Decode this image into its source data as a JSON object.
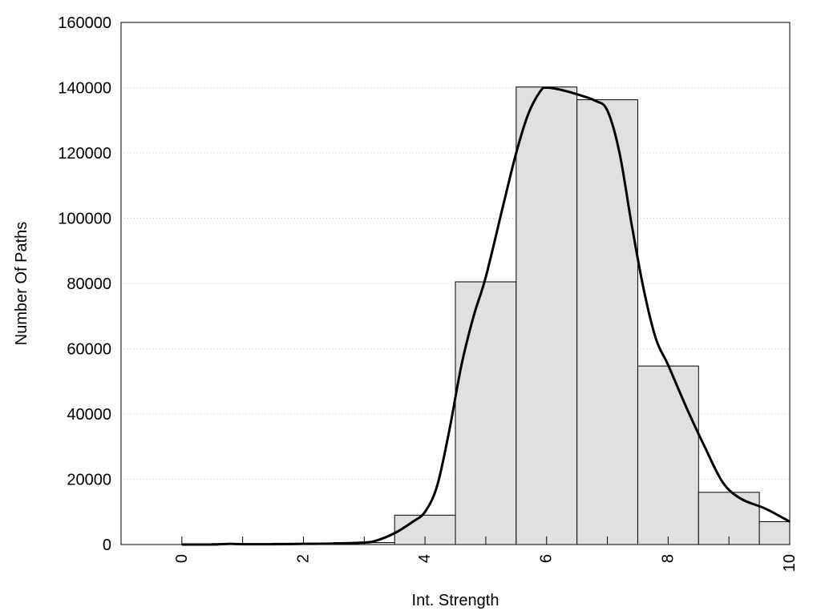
{
  "chart_data": {
    "type": "bar",
    "xlabel": "Int. Strength",
    "ylabel": "Number Of Paths",
    "xlim": [
      -1,
      10
    ],
    "ylim": [
      0,
      160000
    ],
    "x_ticks": [
      0,
      2,
      4,
      6,
      8,
      10
    ],
    "y_ticks": [
      0,
      20000,
      40000,
      60000,
      80000,
      100000,
      120000,
      140000,
      160000
    ],
    "grid": "horizontal dotted",
    "bar_width": 1,
    "series": [
      {
        "type": "bar",
        "x": [
          0,
          1,
          2,
          3,
          4,
          5,
          6,
          7,
          8,
          9,
          10
        ],
        "values": [
          0,
          300,
          400,
          600,
          9000,
          80500,
          140200,
          136300,
          54700,
          16000,
          7000
        ]
      },
      {
        "type": "line",
        "x": [
          0,
          0.5,
          0.8,
          1,
          1.5,
          2,
          2.5,
          3,
          3.2,
          3.5,
          3.8,
          4,
          4.2,
          4.4,
          4.6,
          4.8,
          5,
          5.3,
          5.5,
          5.7,
          5.9,
          6,
          6.2,
          6.5,
          6.8,
          7,
          7.2,
          7.4,
          7.6,
          7.8,
          8,
          8.3,
          8.6,
          8.9,
          9.2,
          9.6,
          10
        ],
        "values": [
          0,
          0,
          200,
          100,
          100,
          200,
          300,
          600,
          1200,
          3500,
          7000,
          10000,
          18000,
          35000,
          55000,
          70000,
          82000,
          105000,
          120000,
          132000,
          139000,
          140000,
          139500,
          138000,
          136000,
          133000,
          120000,
          98000,
          78000,
          63000,
          55000,
          42000,
          30000,
          19000,
          14000,
          11000,
          7000
        ]
      }
    ]
  }
}
